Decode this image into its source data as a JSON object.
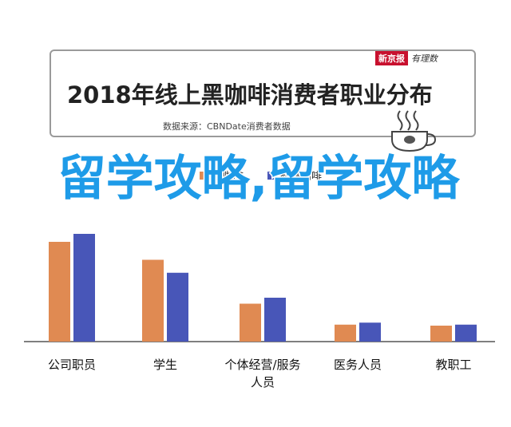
{
  "header": {
    "title": "2018年线上黑咖啡消费者职业分布",
    "source": "数据来源：CBNDate消费者数据",
    "logo_stamp": "新京报",
    "logo_script": "有理数"
  },
  "overlay_text": "留学攻略,留学攻略",
  "colors": {
    "series1": "#e08a52",
    "series2": "#4856b8",
    "overlay": "#1e9be8"
  },
  "chart_data": {
    "type": "bar",
    "title": "2018年线上黑咖啡消费者职业分布",
    "categories": [
      "公司职员",
      "学生",
      "个体经营/服务人员",
      "医务人员",
      "教职工"
    ],
    "series": [
      {
        "name": "黑咖啡",
        "values": [
          100,
          82,
          38,
          17,
          16
        ]
      },
      {
        "name": "整体咖啡",
        "values": [
          108,
          69,
          44,
          19,
          17
        ]
      }
    ],
    "ylim": [
      0,
      120
    ],
    "grid": false,
    "legend": "top-center"
  }
}
